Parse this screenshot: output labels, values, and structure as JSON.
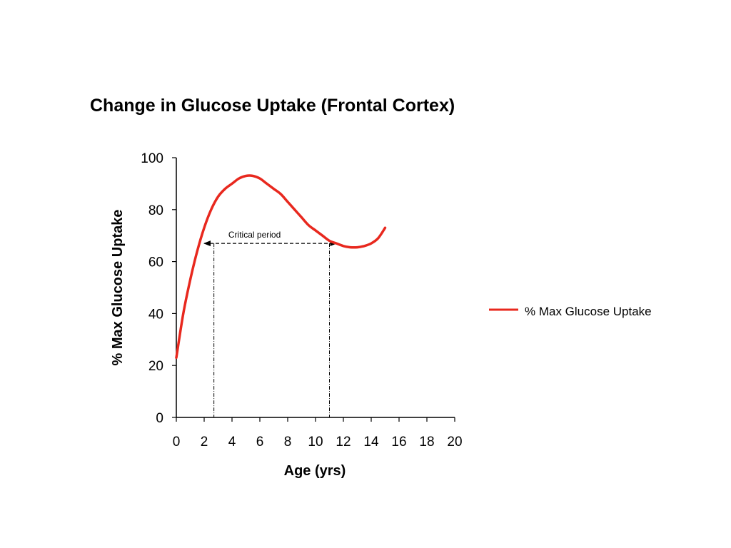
{
  "chart_data": {
    "type": "line",
    "title": "Change in Glucose Uptake (Frontal Cortex)",
    "xlabel": "Age (yrs)",
    "ylabel": "% Max Glucose Uptake",
    "xlim": [
      0,
      20
    ],
    "ylim": [
      0,
      100
    ],
    "x_ticks": [
      "0",
      "2",
      "4",
      "6",
      "8",
      "10",
      "12",
      "14",
      "16",
      "18",
      "20"
    ],
    "y_ticks": [
      "0",
      "20",
      "40",
      "60",
      "80",
      "100"
    ],
    "grid": false,
    "legend_position": "right",
    "series": [
      {
        "name": "% Max Glucose Uptake",
        "color": "#e8281e",
        "x": [
          0,
          0.5,
          1,
          1.5,
          2,
          2.5,
          3,
          3.5,
          4,
          4.5,
          5,
          5.5,
          6,
          6.5,
          7,
          7.5,
          8,
          8.5,
          9,
          9.5,
          10,
          10.5,
          11,
          11.5,
          12,
          12.5,
          13,
          13.5,
          14,
          14.5,
          15
        ],
        "y": [
          23,
          40,
          53,
          64,
          73,
          80,
          85,
          88,
          90,
          92,
          93,
          93,
          92,
          90,
          88,
          86,
          83,
          80,
          77,
          74,
          72,
          70,
          68,
          67,
          66,
          65.5,
          65.5,
          66,
          67,
          69,
          73
        ]
      }
    ],
    "annotations": [
      {
        "text": "Critical period",
        "x_start": 2.7,
        "x_end": 11,
        "y": 67,
        "style": "double-arrow-dashed"
      }
    ]
  }
}
